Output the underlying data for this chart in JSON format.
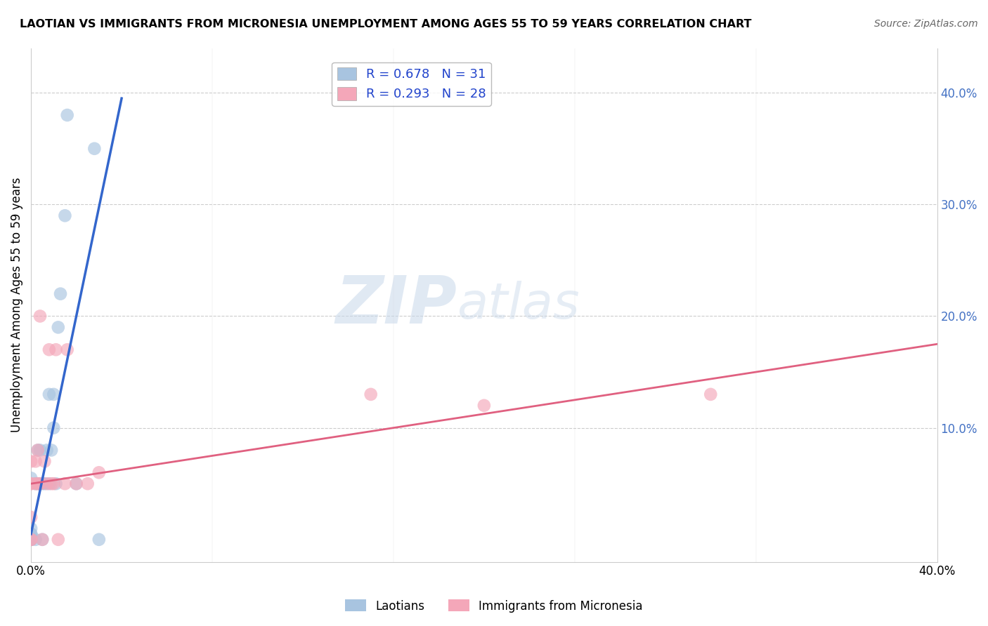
{
  "title": "LAOTIAN VS IMMIGRANTS FROM MICRONESIA UNEMPLOYMENT AMONG AGES 55 TO 59 YEARS CORRELATION CHART",
  "source": "Source: ZipAtlas.com",
  "ylabel": "Unemployment Among Ages 55 to 59 years",
  "xlim": [
    0,
    0.4
  ],
  "ylim": [
    -0.02,
    0.44
  ],
  "ytick_values": [
    0.0,
    0.1,
    0.2,
    0.3,
    0.4
  ],
  "ytick_labels": [
    "",
    "10.0%",
    "20.0%",
    "30.0%",
    "40.0%"
  ],
  "xtick_values": [
    0.0,
    0.4
  ],
  "xtick_labels": [
    "0.0%",
    "40.0%"
  ],
  "legend1_label": "R = 0.678   N = 31",
  "legend2_label": "R = 0.293   N = 28",
  "color_blue": "#a8c4e0",
  "color_pink": "#f4a7b9",
  "line_blue": "#3366cc",
  "line_pink": "#e06080",
  "watermark_zip": "ZIP",
  "watermark_atlas": "atlas",
  "laotian_x": [
    0.0,
    0.0,
    0.0,
    0.0,
    0.0,
    0.0,
    0.0,
    0.0,
    0.002,
    0.002,
    0.003,
    0.003,
    0.004,
    0.004,
    0.005,
    0.005,
    0.006,
    0.007,
    0.008,
    0.008,
    0.009,
    0.01,
    0.01,
    0.011,
    0.012,
    0.013,
    0.015,
    0.016,
    0.02,
    0.028,
    0.03
  ],
  "laotian_y": [
    0.0,
    0.0,
    0.0,
    0.0,
    0.005,
    0.005,
    0.01,
    0.055,
    0.0,
    0.05,
    0.05,
    0.08,
    0.05,
    0.08,
    0.0,
    0.05,
    0.05,
    0.08,
    0.05,
    0.13,
    0.08,
    0.1,
    0.13,
    0.05,
    0.19,
    0.22,
    0.29,
    0.38,
    0.05,
    0.35,
    0.0
  ],
  "micronesia_x": [
    0.0,
    0.0,
    0.0,
    0.0,
    0.0,
    0.0,
    0.002,
    0.002,
    0.003,
    0.003,
    0.004,
    0.004,
    0.005,
    0.006,
    0.007,
    0.008,
    0.009,
    0.01,
    0.011,
    0.012,
    0.015,
    0.016,
    0.02,
    0.025,
    0.03,
    0.15,
    0.2,
    0.3
  ],
  "micronesia_y": [
    0.0,
    0.0,
    0.02,
    0.05,
    0.05,
    0.07,
    0.05,
    0.07,
    0.05,
    0.08,
    0.05,
    0.2,
    0.0,
    0.07,
    0.05,
    0.17,
    0.05,
    0.05,
    0.17,
    0.0,
    0.05,
    0.17,
    0.05,
    0.05,
    0.06,
    0.13,
    0.12,
    0.13
  ],
  "blue_line_x": [
    0.0,
    0.04
  ],
  "blue_line_y": [
    0.005,
    0.395
  ],
  "pink_line_x": [
    0.0,
    0.4
  ],
  "pink_line_y": [
    0.05,
    0.175
  ]
}
